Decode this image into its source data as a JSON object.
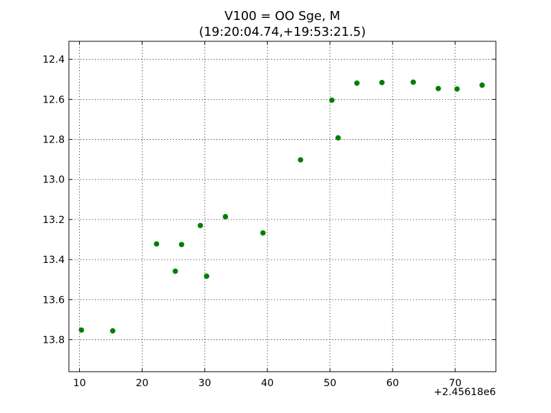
{
  "chart_data": {
    "type": "scatter",
    "title_line1": "V100 = OO Sge, M",
    "title_line2": "(19:20:04.74,+19:53:21.5)",
    "xlabel": "",
    "ylabel": "",
    "x_offset_label": "+2.45618e6",
    "xlim": [
      8.3,
      76.5
    ],
    "ylim": [
      13.96,
      12.31
    ],
    "y_inverted": true,
    "grid": true,
    "x_ticks": [
      10,
      20,
      30,
      40,
      50,
      60,
      70
    ],
    "x_tick_labels": [
      "10",
      "20",
      "30",
      "40",
      "50",
      "60",
      "70"
    ],
    "y_ticks": [
      12.4,
      12.6,
      12.8,
      13.0,
      13.2,
      13.4,
      13.6,
      13.8
    ],
    "y_tick_labels": [
      "12.4",
      "12.6",
      "12.8",
      "13.0",
      "13.2",
      "13.4",
      "13.6",
      "13.8"
    ],
    "marker_color": "#007f00",
    "points": [
      {
        "x": 10.3,
        "y": 13.752
      },
      {
        "x": 15.3,
        "y": 13.756
      },
      {
        "x": 22.3,
        "y": 13.322
      },
      {
        "x": 25.3,
        "y": 13.458
      },
      {
        "x": 26.3,
        "y": 13.325
      },
      {
        "x": 29.3,
        "y": 13.23
      },
      {
        "x": 30.3,
        "y": 13.483
      },
      {
        "x": 33.3,
        "y": 13.186
      },
      {
        "x": 39.3,
        "y": 13.267
      },
      {
        "x": 45.3,
        "y": 12.902
      },
      {
        "x": 50.3,
        "y": 12.604
      },
      {
        "x": 51.3,
        "y": 12.792
      },
      {
        "x": 54.3,
        "y": 12.519
      },
      {
        "x": 58.3,
        "y": 12.516
      },
      {
        "x": 63.3,
        "y": 12.514
      },
      {
        "x": 67.3,
        "y": 12.546
      },
      {
        "x": 70.3,
        "y": 12.548
      },
      {
        "x": 74.3,
        "y": 12.529
      }
    ]
  }
}
